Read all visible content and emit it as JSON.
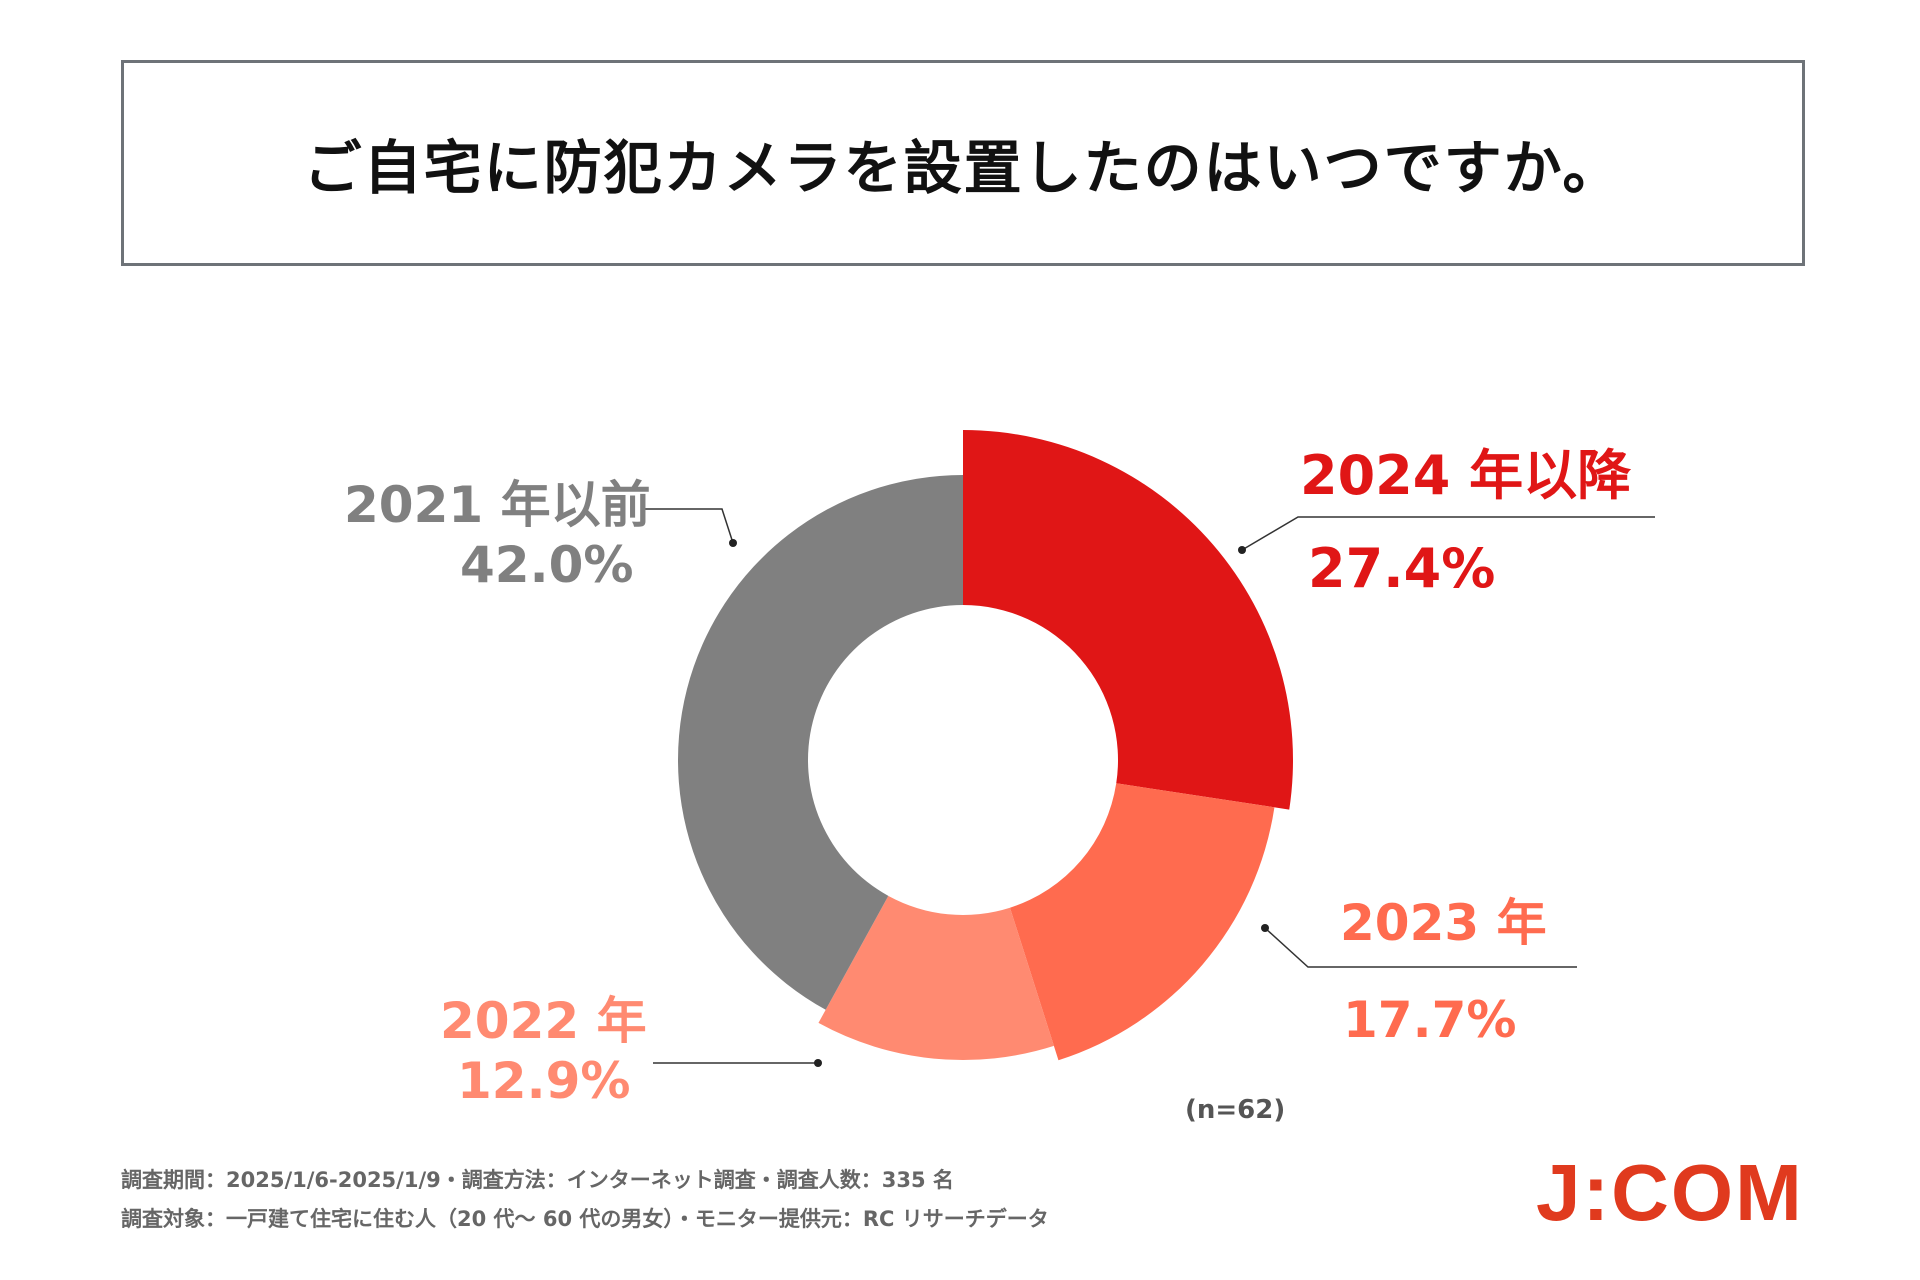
{
  "title": "ご自宅に防犯カメラを設置したのはいつですか。",
  "chart_data": {
    "type": "pie",
    "title": "ご自宅に防犯カメラを設置したのはいつですか。",
    "categories": [
      "2024 年以降",
      "2023 年",
      "2022 年",
      "2021 年以前"
    ],
    "values": [
      27.4,
      17.7,
      12.9,
      42.0
    ],
    "labels_pct": [
      "27.4%",
      "17.7%",
      "12.9%",
      "42.0%"
    ],
    "colors": [
      "#e01616",
      "#ff6b4f",
      "#ff8a71",
      "#808080"
    ],
    "sample_note": "(n=62)"
  },
  "footer": {
    "line1": "調査期間：2025/1/6-2025/1/9・調査方法：インターネット調査・調査人数：335 名",
    "line2": "調査対象：一戸建て住宅に住む人（20 代～ 60 代の男女）・モニター提供元：RC リサーチデータ"
  },
  "logo": {
    "text": "J:COM",
    "color": "#e03a1e"
  }
}
